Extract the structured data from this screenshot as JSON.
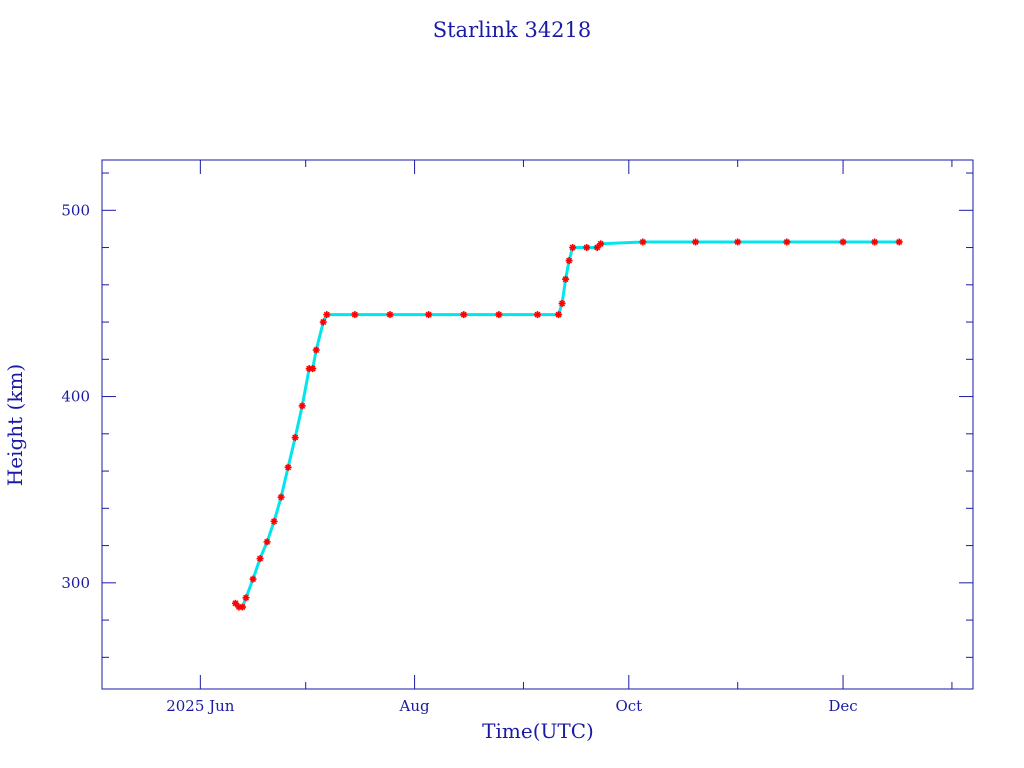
{
  "chart_data": {
    "type": "scatter",
    "title": "Starlink 34218",
    "xlabel": "Time(UTC)",
    "ylabel": "Height (km)",
    "x_range": [
      "2025-05-04",
      "2026-01-07"
    ],
    "ylim": [
      243,
      527
    ],
    "y_ticks": [
      300,
      400,
      500
    ],
    "y_minor_step": 20,
    "x_ticks": [
      {
        "date": "2025-06-01",
        "label": "2025 Jun"
      },
      {
        "date": "2025-08-01",
        "label": "Aug"
      },
      {
        "date": "2025-10-01",
        "label": "Oct"
      },
      {
        "date": "2025-12-01",
        "label": "Dec"
      }
    ],
    "x_minor_ticks": [
      "2025-07-01",
      "2025-09-01",
      "2025-11-01",
      "2026-01-01"
    ],
    "grid": false,
    "legend": "none",
    "colors": {
      "axis": "#1a1aa6",
      "marker": "#ff0000",
      "line": "#00e5ee"
    },
    "series": [
      {
        "marker": "asterisk",
        "points": [
          {
            "x": "2025-06-11",
            "y": 289
          },
          {
            "x": "2025-06-12",
            "y": 287
          },
          {
            "x": "2025-06-13",
            "y": 287
          },
          {
            "x": "2025-06-14",
            "y": 292
          },
          {
            "x": "2025-06-16",
            "y": 302
          },
          {
            "x": "2025-06-18",
            "y": 313
          },
          {
            "x": "2025-06-20",
            "y": 322
          },
          {
            "x": "2025-06-22",
            "y": 333
          },
          {
            "x": "2025-06-24",
            "y": 346
          },
          {
            "x": "2025-06-26",
            "y": 362
          },
          {
            "x": "2025-06-28",
            "y": 378
          },
          {
            "x": "2025-06-30",
            "y": 395
          },
          {
            "x": "2025-07-02",
            "y": 415
          },
          {
            "x": "2025-07-03",
            "y": 415
          },
          {
            "x": "2025-07-04",
            "y": 425
          },
          {
            "x": "2025-07-06",
            "y": 440
          },
          {
            "x": "2025-07-07",
            "y": 444
          },
          {
            "x": "2025-07-15",
            "y": 444
          },
          {
            "x": "2025-07-25",
            "y": 444
          },
          {
            "x": "2025-08-05",
            "y": 444
          },
          {
            "x": "2025-08-15",
            "y": 444
          },
          {
            "x": "2025-08-25",
            "y": 444
          },
          {
            "x": "2025-09-05",
            "y": 444
          },
          {
            "x": "2025-09-11",
            "y": 444
          },
          {
            "x": "2025-09-12",
            "y": 450
          },
          {
            "x": "2025-09-13",
            "y": 463
          },
          {
            "x": "2025-09-14",
            "y": 473
          },
          {
            "x": "2025-09-15",
            "y": 480
          },
          {
            "x": "2025-09-19",
            "y": 480
          },
          {
            "x": "2025-09-22",
            "y": 480
          },
          {
            "x": "2025-09-23",
            "y": 482
          },
          {
            "x": "2025-10-05",
            "y": 483
          },
          {
            "x": "2025-10-20",
            "y": 483
          },
          {
            "x": "2025-11-01",
            "y": 483
          },
          {
            "x": "2025-11-15",
            "y": 483
          },
          {
            "x": "2025-12-01",
            "y": 483
          },
          {
            "x": "2025-12-10",
            "y": 483
          },
          {
            "x": "2025-12-17",
            "y": 483
          }
        ]
      }
    ]
  }
}
